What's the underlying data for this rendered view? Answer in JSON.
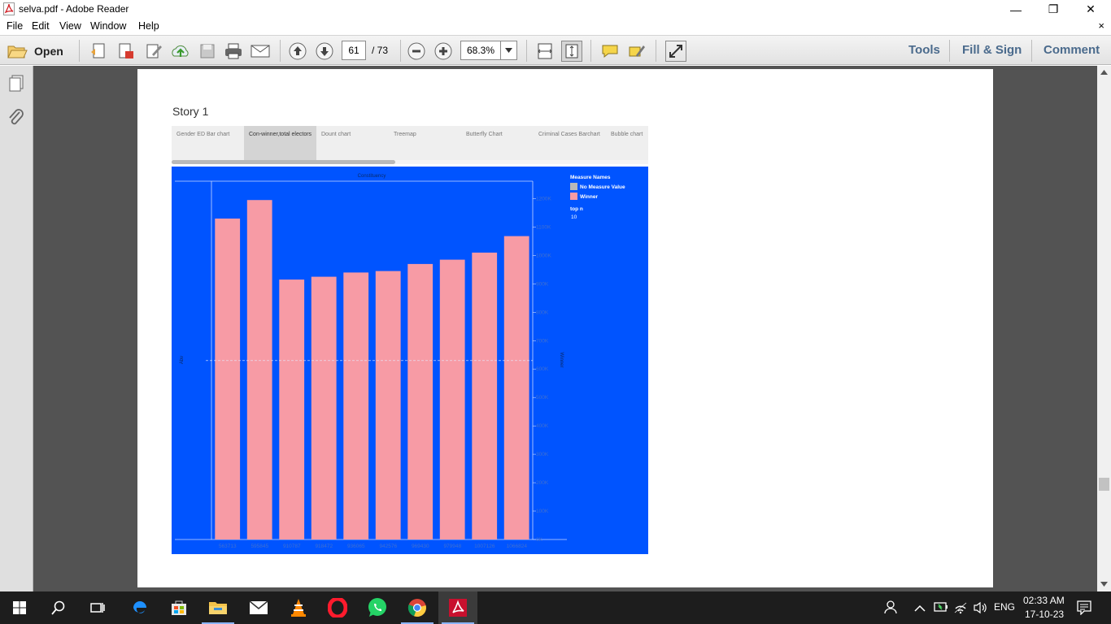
{
  "window": {
    "title": "selva.pdf - Adobe Reader",
    "minimize": "—",
    "maximize": "❐",
    "close": "✕"
  },
  "menu": {
    "items": [
      "File",
      "Edit",
      "View",
      "Window",
      "Help"
    ],
    "close_doc": "×"
  },
  "toolbar": {
    "open_label": "Open",
    "page_current": "61",
    "page_total": "/ 73",
    "zoom": "68.3%",
    "tools_label": "Tools",
    "fill_sign_label": "Fill & Sign",
    "comment_label": "Comment"
  },
  "story": {
    "title": "Story 1",
    "tabs": [
      {
        "label": "Gender ED Bar chart"
      },
      {
        "label": "Con-winner,total electors"
      },
      {
        "label": "Dount chart"
      },
      {
        "label": "Treemap"
      },
      {
        "label": "Butterfly Chart"
      },
      {
        "label": "Criminal Cases Barchart"
      },
      {
        "label": "Bubble chart"
      }
    ],
    "active_tab": 1
  },
  "chart_data": {
    "type": "bar",
    "title": "Constituency",
    "x_categories": [
      "563713",
      "595845",
      "910787",
      "918472",
      "936065",
      "942576",
      "969430",
      "979948",
      "1007126",
      "1066824"
    ],
    "values": [
      1130000,
      1195000,
      915000,
      925000,
      940000,
      945000,
      970000,
      985000,
      1010000,
      1068000
    ],
    "series_name": "Winner",
    "ylabel_left": "Abv",
    "ylabel_right": "Winner",
    "ylim": [
      0,
      1250000
    ],
    "yticks": [
      0,
      100000,
      200000,
      300000,
      400000,
      500000,
      600000,
      700000,
      800000,
      900000,
      1000000,
      1100000,
      1200000
    ],
    "ytick_labels": [
      "0K",
      "100K",
      "200K",
      "300K",
      "400K",
      "500K",
      "600K",
      "700K",
      "800K",
      "900K",
      "1000K",
      "1100K",
      "1200K"
    ],
    "reference_line": 630000,
    "bar_color": "#f79ba5",
    "background": "#0054ff",
    "legend": {
      "title": "Measure Names",
      "items": [
        {
          "label": "No Measure Value",
          "color": "#b8b8b8"
        },
        {
          "label": "Winner",
          "color": "#f79ba5"
        }
      ],
      "param_title": "top n",
      "param_value": "10"
    }
  },
  "taskbar": {
    "lang": "ENG",
    "time": "02:33 AM",
    "date": "17-10-23"
  },
  "colors": {
    "toolbar_text": "#4a6a8c",
    "doc_bg": "#535353",
    "taskbar_bg": "#1d1d1d"
  }
}
